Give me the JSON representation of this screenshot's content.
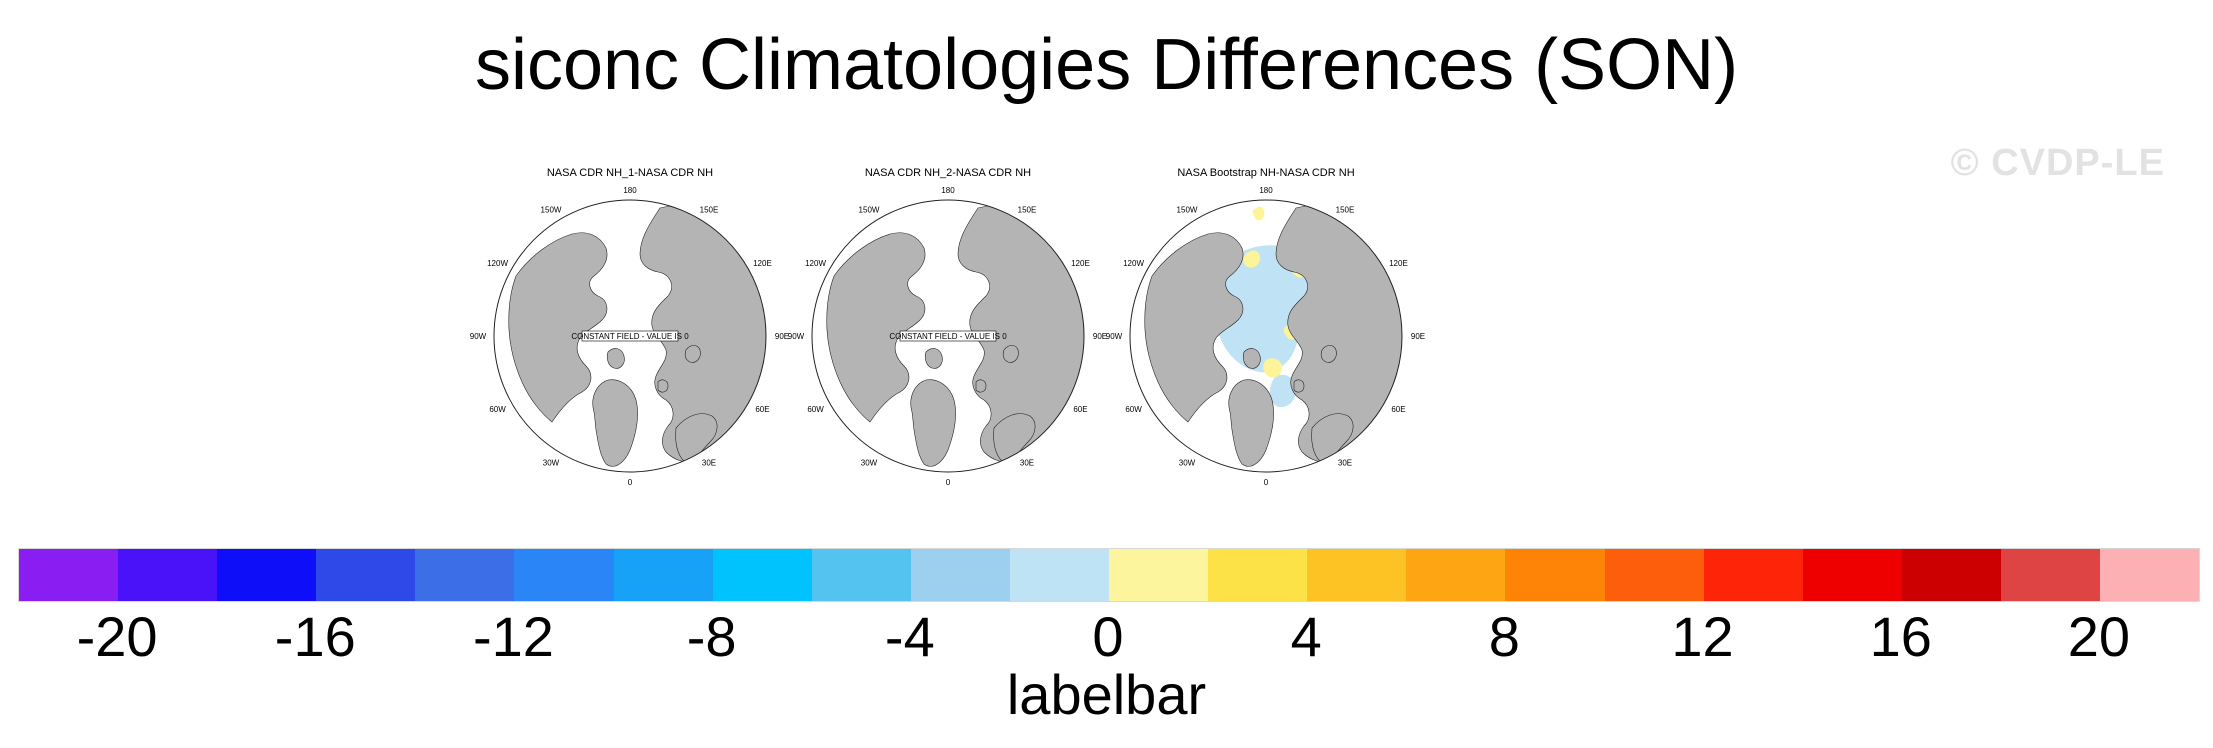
{
  "title": "siconc Climatologies Differences (SON)",
  "watermark": "© CVDP-LE",
  "colors": {
    "land": "#b4b4b4",
    "ocean": "#ffffff",
    "ice_neg": "#bfe3f4",
    "ice_pos": "#fdf49a"
  },
  "lon_labels": {
    "n180": "180",
    "w150": "150W",
    "e150": "150E",
    "w120": "120W",
    "e120": "120E",
    "w90": "90W",
    "e90": "90E",
    "w60": "60W",
    "e60": "60E",
    "w30": "30W",
    "e30": "30E",
    "n0": "0"
  },
  "panels": [
    {
      "title": "NASA CDR NH_1-NASA CDR NH",
      "constant_label": "CONSTANT FIELD - VALUE IS 0",
      "has_data": false
    },
    {
      "title": "NASA CDR NH_2-NASA CDR NH",
      "constant_label": "CONSTANT FIELD - VALUE IS 0",
      "has_data": false
    },
    {
      "title": "NASA Bootstrap NH-NASA CDR NH",
      "constant_label": "",
      "has_data": true
    }
  ],
  "chart_data": {
    "type": "heatmap",
    "title": "siconc Climatologies Differences (SON)",
    "projection": "north polar stereographic",
    "subplots": [
      "NASA CDR NH_1-NASA CDR NH",
      "NASA CDR NH_2-NASA CDR NH",
      "NASA Bootstrap NH-NASA CDR NH"
    ],
    "labelbar": {
      "title": "labelbar",
      "tick_labels": [
        "-20",
        "-16",
        "-12",
        "-8",
        "-4",
        "0",
        "4",
        "8",
        "12",
        "16",
        "20"
      ],
      "tick_values": [
        -20,
        -16,
        -12,
        -8,
        -4,
        0,
        4,
        8,
        12,
        16,
        20
      ],
      "range": [
        -22,
        22
      ],
      "bin_width": 2,
      "colors": [
        "#8a1ef2",
        "#4a12f8",
        "#0e0ef8",
        "#2f49e8",
        "#3c6ee8",
        "#2a86f7",
        "#17a2f7",
        "#00c2fc",
        "#55c3f0",
        "#9dd0ee",
        "#bde3f5",
        "#fdf59e",
        "#fde247",
        "#fdc324",
        "#fda513",
        "#fd8406",
        "#fd5e0b",
        "#fd2408",
        "#ee0000",
        "#cc0000",
        "#df4444",
        "#fdb0b4"
      ]
    }
  }
}
